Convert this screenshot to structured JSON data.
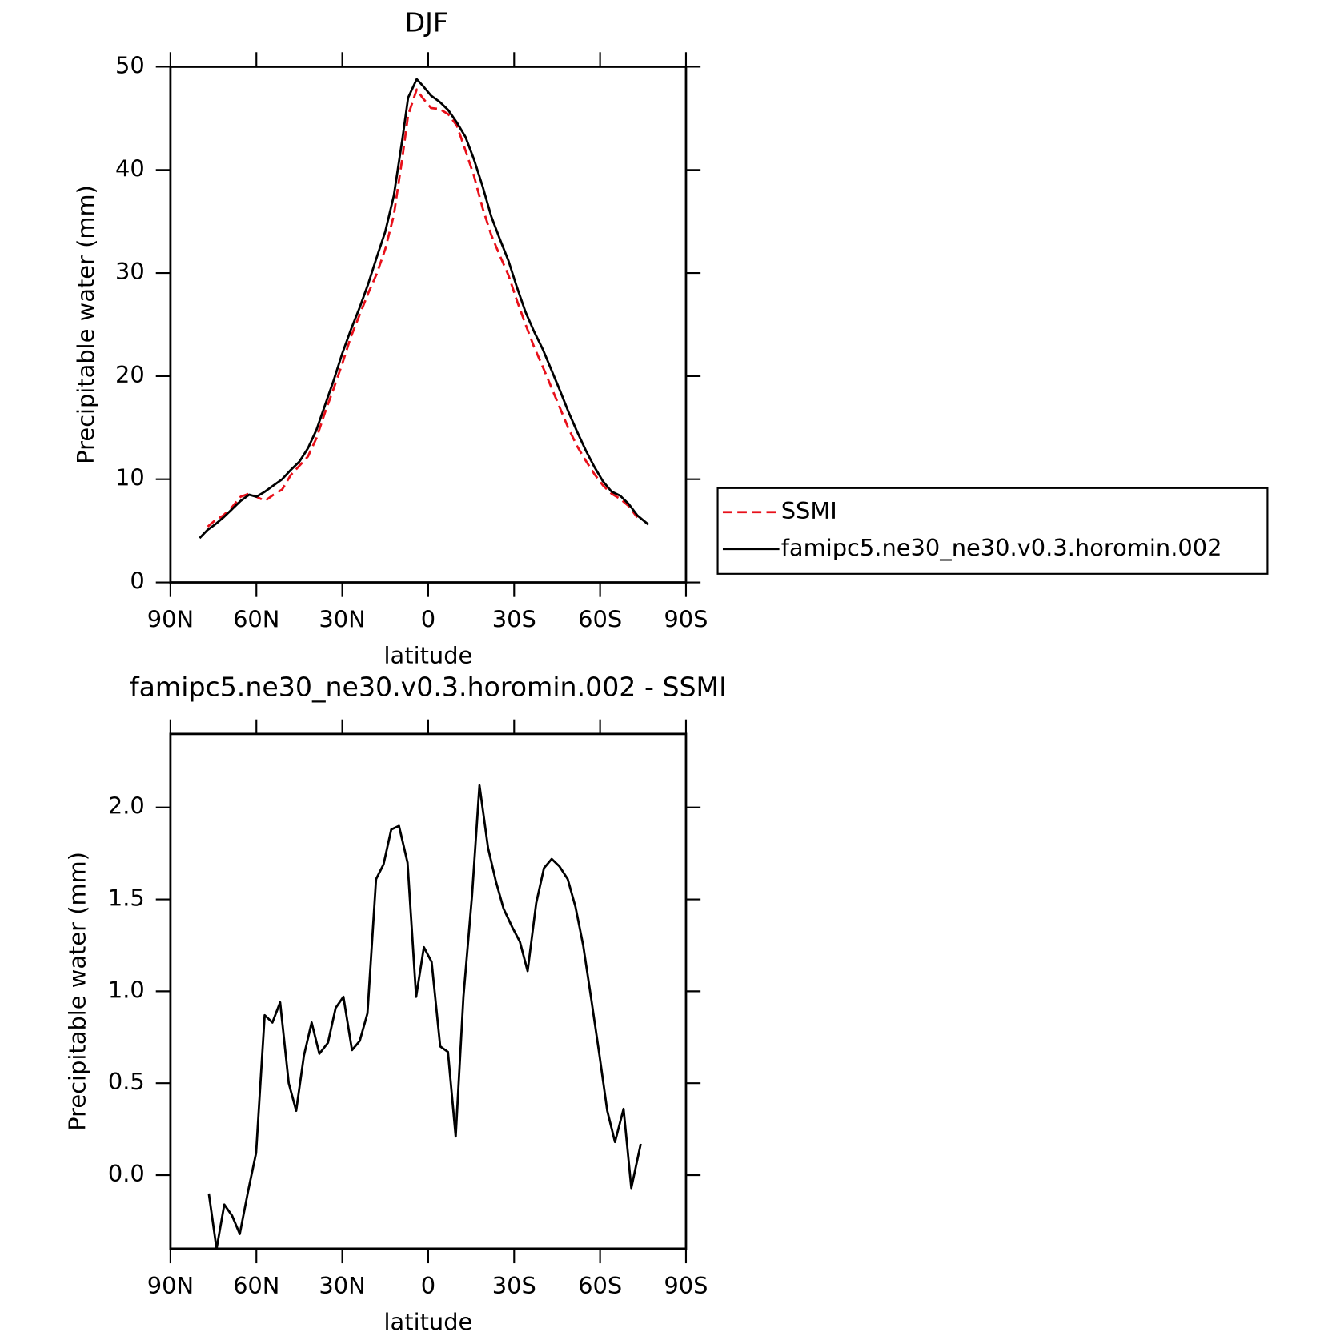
{
  "chart_data": [
    {
      "type": "line",
      "title": "DJF",
      "xlabel": "latitude",
      "ylabel": "Precipitable water (mm)",
      "x": [
        79.8,
        77,
        74.5,
        71.5,
        68.5,
        65.5,
        62.5,
        60,
        57,
        54,
        51,
        48,
        45,
        42,
        39,
        36,
        33,
        30,
        27,
        24,
        21,
        18,
        15,
        12,
        9,
        7,
        4,
        2,
        -1,
        -4,
        -7,
        -10,
        -13,
        -16,
        -19,
        -22,
        -25,
        -28,
        -31,
        -34,
        -37,
        -40,
        -43,
        -46,
        -49,
        -52,
        -55,
        -58,
        -61,
        -64,
        -67,
        -70,
        -73,
        -76.9
      ],
      "series": [
        {
          "name": "SSMI",
          "color": "#e8101a",
          "dash": true,
          "values": [
            null,
            5.4,
            6.0,
            6.5,
            7.3,
            8.3,
            8.6,
            8.3,
            7.9,
            8.5,
            9.0,
            10.4,
            11.3,
            12.2,
            14.0,
            16.5,
            18.8,
            21.2,
            23.8,
            25.9,
            28.0,
            29.9,
            32.3,
            35.6,
            41.2,
            45.3,
            47.8,
            47.0,
            46.0,
            45.9,
            45.4,
            44.3,
            41.9,
            39.4,
            36.3,
            33.7,
            31.7,
            29.8,
            27.3,
            25.0,
            22.8,
            20.9,
            18.9,
            16.9,
            14.9,
            13.2,
            11.8,
            10.5,
            9.4,
            8.6,
            8.1,
            7.4,
            6.3,
            null
          ]
        },
        {
          "name": "famipc5.ne30_ne30.v0.3.horomin.002",
          "color": "#000000",
          "dash": false,
          "values": [
            4.3,
            5.1,
            5.6,
            6.3,
            7.1,
            7.9,
            8.5,
            8.3,
            8.8,
            9.4,
            10.0,
            10.9,
            11.7,
            13.0,
            14.8,
            17.2,
            19.6,
            22.2,
            24.5,
            26.6,
            28.9,
            31.5,
            34.0,
            37.5,
            43.0,
            47.0,
            48.8,
            48.2,
            47.2,
            46.6,
            45.8,
            44.6,
            43.2,
            41.0,
            38.4,
            35.5,
            33.3,
            31.2,
            28.6,
            26.2,
            24.3,
            22.6,
            20.6,
            18.6,
            16.5,
            14.6,
            12.8,
            11.2,
            9.8,
            8.8,
            8.4,
            7.6,
            6.5,
            5.6
          ]
        }
      ],
      "xlim": [
        90,
        -90
      ],
      "xticks": [
        {
          "value": 90,
          "label": "90N"
        },
        {
          "value": 60,
          "label": "60N"
        },
        {
          "value": 30,
          "label": "30N"
        },
        0,
        {
          "value": -30,
          "label": "30S"
        },
        {
          "value": -60,
          "label": "60S"
        },
        {
          "value": -90,
          "label": "90S"
        }
      ],
      "ylim": [
        0,
        50
      ],
      "yticks": [
        0,
        10,
        20,
        30,
        40,
        50
      ],
      "legend": "right"
    },
    {
      "type": "line",
      "title": "famipc5.ne30_ne30.v0.3.horomin.002 - SSMI",
      "xlabel": "latitude",
      "ylabel": "Precipitable water (mm)",
      "x": [
        76.6,
        73.9,
        71.2,
        68.5,
        65.8,
        62.8,
        60.1,
        57.1,
        54.4,
        51.7,
        48.7,
        46.1,
        43.4,
        40.7,
        38.0,
        35.0,
        32.3,
        29.6,
        26.6,
        23.9,
        21.2,
        18.2,
        15.6,
        12.9,
        10.2,
        7.2,
        4.2,
        1.5,
        -1.2,
        -4.2,
        -6.9,
        -9.6,
        -12.3,
        -15.3,
        -17.9,
        -20.9,
        -23.6,
        -26.3,
        -29.3,
        -32.0,
        -34.7,
        -37.7,
        -40.4,
        -43.1,
        -45.8,
        -48.7,
        -51.4,
        -54.1,
        -56.8,
        -59.8,
        -62.5,
        -65.2,
        -68.2,
        -70.9,
        -74.2
      ],
      "series": [
        {
          "color": "#000000",
          "dash": false,
          "values": [
            -0.1,
            -0.4,
            -0.16,
            -0.22,
            -0.32,
            -0.08,
            0.12,
            0.87,
            0.83,
            0.94,
            0.5,
            0.35,
            0.65,
            0.83,
            0.66,
            0.72,
            0.91,
            0.97,
            0.68,
            0.73,
            0.88,
            1.61,
            1.69,
            1.88,
            1.9,
            1.7,
            0.97,
            1.24,
            1.16,
            0.7,
            0.67,
            0.21,
            0.97,
            1.52,
            2.12,
            1.78,
            1.6,
            1.45,
            1.35,
            1.27,
            1.11,
            1.48,
            1.67,
            1.72,
            1.68,
            1.61,
            1.46,
            1.25,
            0.97,
            0.65,
            0.35,
            0.18,
            0.36,
            -0.07,
            0.17
          ]
        }
      ],
      "xlim": [
        90,
        -90
      ],
      "xticks": [
        {
          "value": 90,
          "label": "90N"
        },
        {
          "value": 60,
          "label": "60N"
        },
        {
          "value": 30,
          "label": "30N"
        },
        0,
        {
          "value": -30,
          "label": "30S"
        },
        {
          "value": -60,
          "label": "60S"
        },
        {
          "value": -90,
          "label": "90S"
        }
      ],
      "ylim": [
        -0.4,
        2.4
      ],
      "yticks": [
        {
          "value": 0,
          "label": "0.0"
        },
        0.5,
        {
          "value": 1,
          "label": "1.0"
        },
        1.5,
        {
          "value": 2,
          "label": "2.0"
        }
      ]
    }
  ]
}
